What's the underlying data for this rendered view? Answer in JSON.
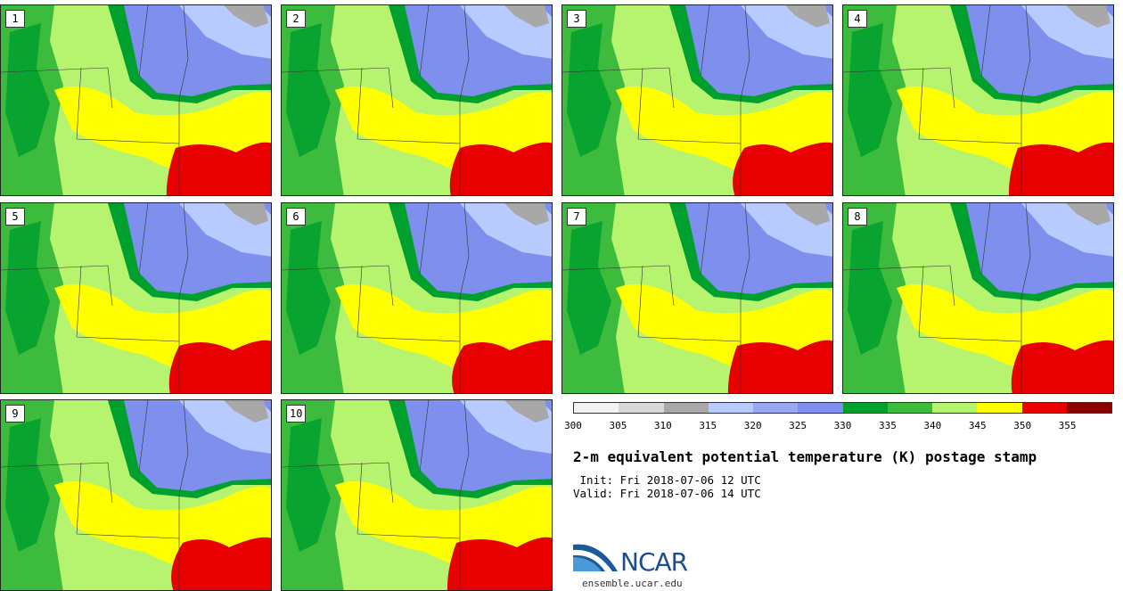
{
  "stamps": [
    {
      "label": "1"
    },
    {
      "label": "2"
    },
    {
      "label": "3"
    },
    {
      "label": "4"
    },
    {
      "label": "5"
    },
    {
      "label": "6"
    },
    {
      "label": "7"
    },
    {
      "label": "8"
    },
    {
      "label": "9"
    },
    {
      "label": "10"
    }
  ],
  "colorbar": {
    "ticks": [
      "300",
      "305",
      "310",
      "315",
      "320",
      "325",
      "330",
      "335",
      "340",
      "345",
      "350",
      "355"
    ],
    "colors": [
      "#f2f2f2",
      "#d9d9d9",
      "#a8a8a8",
      "#b8cbff",
      "#98a8f5",
      "#7f8fee",
      "#00a02e",
      "#3dbb3d",
      "#b6f36e",
      "#ffff00",
      "#e80000",
      "#8a0000"
    ]
  },
  "title": "2-m equivalent potential temperature (K) postage stamp",
  "init_line": " Init: Fri 2018-07-06 12 UTC",
  "valid_line": "Valid: Fri 2018-07-06 14 UTC",
  "logo": {
    "text": "NCAR",
    "website": "ensemble.ucar.edu"
  }
}
